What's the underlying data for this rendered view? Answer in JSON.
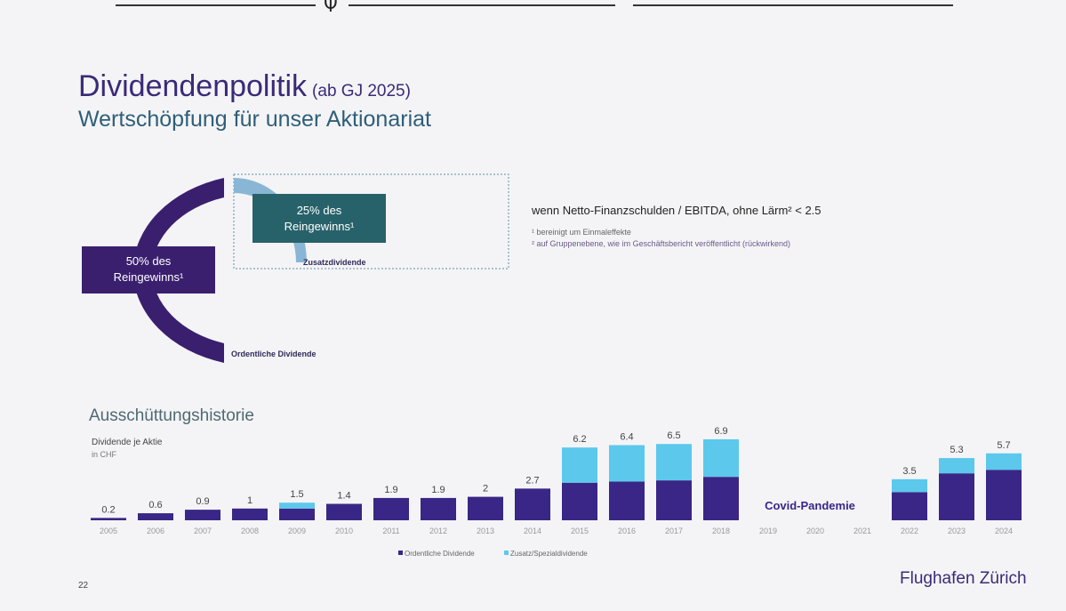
{
  "page": {
    "title": "Dividendenpolitik",
    "title_suffix": "(ab GJ 2025)",
    "subtitle": "Wertschöpfung für unser Aktionariat",
    "page_number": "22",
    "brand": "Flughafen Zürich"
  },
  "policy": {
    "ordinary_label_pct": "50% des",
    "ordinary_label_rest": "Reingewinns¹",
    "ordinary_caption": "Ordentliche Dividende",
    "additional_label_pct": "25% des",
    "additional_label_rest": "Reingewinns¹",
    "additional_caption": "Zusatzdividende",
    "condition": "wenn Netto-Finanzschulden / EBITDA, ohne Lärm² < 2.5",
    "footnote_1": "¹ bereinigt um Einmaleffekte",
    "footnote_2": "² auf Gruppenebene, wie im Geschäftsbericht veröffentlicht (rückwirkend)",
    "colors": {
      "ordinary": "#3a1f6e",
      "additional_box": "#27626a",
      "additional_arc": "#8ab6d6"
    }
  },
  "history": {
    "title": "Ausschüttungshistorie",
    "y_label": "Dividende je Aktie",
    "y_unit": "in CHF",
    "covid_label": "Covid-Pandemie",
    "legend": [
      "Ordentliche Dividende",
      "Zusatz/Spezialdividende"
    ]
  },
  "chart_data": {
    "type": "bar",
    "stacked": true,
    "categories": [
      "2005",
      "2006",
      "2007",
      "2008",
      "2009",
      "2010",
      "2011",
      "2012",
      "2013",
      "2014",
      "2015",
      "2016",
      "2017",
      "2018",
      "2019",
      "2020",
      "2021",
      "2022",
      "2023",
      "2024"
    ],
    "series": [
      {
        "name": "Ordentliche Dividende",
        "color": "#3a2686",
        "values": [
          0.2,
          0.6,
          0.9,
          1.0,
          1.0,
          1.4,
          1.9,
          1.9,
          2.0,
          2.7,
          3.2,
          3.3,
          3.4,
          3.7,
          0,
          0,
          0,
          2.4,
          4.0,
          4.3
        ]
      },
      {
        "name": "Zusatz/Spezialdividende",
        "color": "#5cc8ec",
        "values": [
          0,
          0,
          0,
          0,
          0.5,
          0,
          0,
          0,
          0,
          0,
          3.0,
          3.1,
          3.1,
          3.2,
          0,
          0,
          0,
          1.1,
          1.3,
          1.4
        ]
      }
    ],
    "totals": [
      "0.2",
      "0.6",
      "0.9",
      "1",
      "1.5",
      "1.4",
      "1.9",
      "1.9",
      "2",
      "2.7",
      "6.2",
      "6.4",
      "6.5",
      "6.9",
      "",
      "",
      "",
      "3.5",
      "5.3",
      "5.7"
    ],
    "ylim": [
      0,
      7
    ],
    "grid": false,
    "legend_position": "bottom"
  }
}
